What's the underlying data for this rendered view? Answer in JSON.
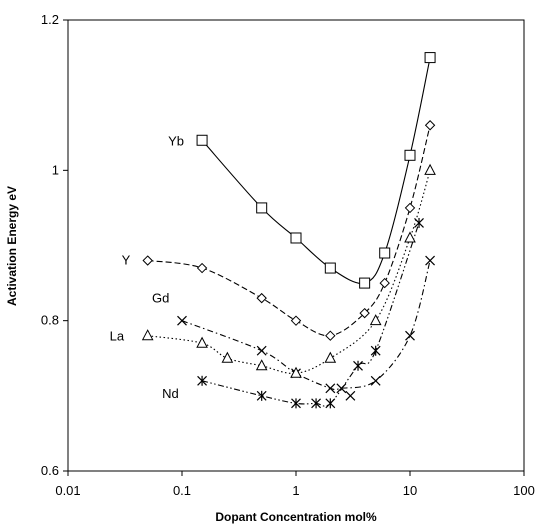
{
  "chart_data": {
    "type": "scatter",
    "xlabel": "Dopant Concentration mol%",
    "ylabel": "Activation Energy eV",
    "x_scale": "log",
    "xlim": [
      0.01,
      100
    ],
    "ylim": [
      0.6,
      1.2
    ],
    "x_ticks": [
      "0.01",
      "0.1",
      "1",
      "10",
      "100"
    ],
    "y_ticks": [
      "0.6",
      "0.8",
      "1",
      "1.2"
    ],
    "grid": false,
    "series": [
      {
        "name": "Yb",
        "marker": "square",
        "line": "solid",
        "x": [
          0.15,
          0.5,
          1.0,
          2.0,
          4.0,
          6.0,
          10.0,
          15.0
        ],
        "y": [
          1.04,
          0.95,
          0.91,
          0.87,
          0.85,
          0.89,
          1.02,
          1.15
        ]
      },
      {
        "name": "Y",
        "marker": "diamond",
        "line": "dashed",
        "x": [
          0.05,
          0.15,
          0.5,
          1.0,
          2.0,
          4.0,
          6.0,
          10.0,
          15.0
        ],
        "y": [
          0.88,
          0.87,
          0.83,
          0.8,
          0.78,
          0.81,
          0.85,
          0.95,
          1.06
        ]
      },
      {
        "name": "Gd",
        "marker": "x",
        "line": "dash-dot",
        "x": [
          0.1,
          0.5,
          1.0,
          2.0,
          2.5,
          5.0,
          10.0,
          15.0
        ],
        "y": [
          0.8,
          0.76,
          0.73,
          0.71,
          0.71,
          0.72,
          0.78,
          0.88
        ]
      },
      {
        "name": "La",
        "marker": "triangle",
        "line": "dotted",
        "x": [
          0.05,
          0.15,
          0.25,
          0.5,
          1.0,
          2.0,
          5.0,
          10.0,
          15.0
        ],
        "y": [
          0.78,
          0.77,
          0.75,
          0.74,
          0.73,
          0.75,
          0.8,
          0.91,
          1.0
        ]
      },
      {
        "name": "Nd",
        "marker": "asterisk",
        "line": "dash-dot-dot",
        "x": [
          0.15,
          0.5,
          1.0,
          1.5,
          2.0,
          3.5,
          5.0,
          12.0
        ],
        "y": [
          0.72,
          0.7,
          0.69,
          0.69,
          0.69,
          0.74,
          0.76,
          0.93
        ]
      },
      {
        "name": "",
        "marker": "x",
        "line": "none",
        "x": [
          3.0
        ],
        "y": [
          0.7
        ]
      }
    ]
  }
}
